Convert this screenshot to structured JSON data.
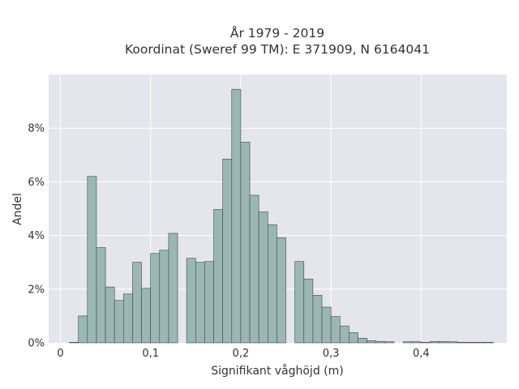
{
  "chart_data": {
    "type": "bar",
    "title": "År 1979 - 2019",
    "subtitle": "Koordinat (Sweref 99 TM): E 371909, N 6164041",
    "xlabel": "Signifikant våghöjd (m)",
    "ylabel": "Andel",
    "xlim": [
      -0.013,
      0.495
    ],
    "ylim": [
      0,
      10
    ],
    "x_ticks": [
      {
        "value": 0,
        "label": "0"
      },
      {
        "value": 0.1,
        "label": "0,1"
      },
      {
        "value": 0.2,
        "label": "0,2"
      },
      {
        "value": 0.3,
        "label": "0,3"
      },
      {
        "value": 0.4,
        "label": "0,4"
      }
    ],
    "y_ticks": [
      {
        "value": 0,
        "label": "0%"
      },
      {
        "value": 2,
        "label": "2%"
      },
      {
        "value": 4,
        "label": "4%"
      },
      {
        "value": 6,
        "label": "6%"
      },
      {
        "value": 8,
        "label": "8%"
      }
    ],
    "bin_width": 0.01,
    "bin_start": 0.01,
    "values": [
      0.02,
      1.0,
      6.2,
      3.55,
      2.08,
      1.58,
      1.82,
      3.0,
      2.03,
      3.33,
      3.45,
      4.08,
      0,
      3.15,
      3.0,
      3.03,
      4.97,
      6.85,
      9.45,
      7.48,
      5.5,
      4.88,
      4.4,
      3.92,
      0,
      3.03,
      2.38,
      1.77,
      1.33,
      0.98,
      0.63,
      0.38,
      0.17,
      0.08,
      0.05,
      0.04,
      0,
      0.04,
      0.04,
      0.02,
      0.05,
      0.05,
      0.04,
      0.02,
      0.02,
      0.02,
      0.02
    ],
    "grid": true,
    "colors": {
      "background": "#e5e5ee",
      "bar_fill": "#9ab7b5",
      "bar_stroke": "#3d4848",
      "grid": "#ffffff"
    }
  }
}
